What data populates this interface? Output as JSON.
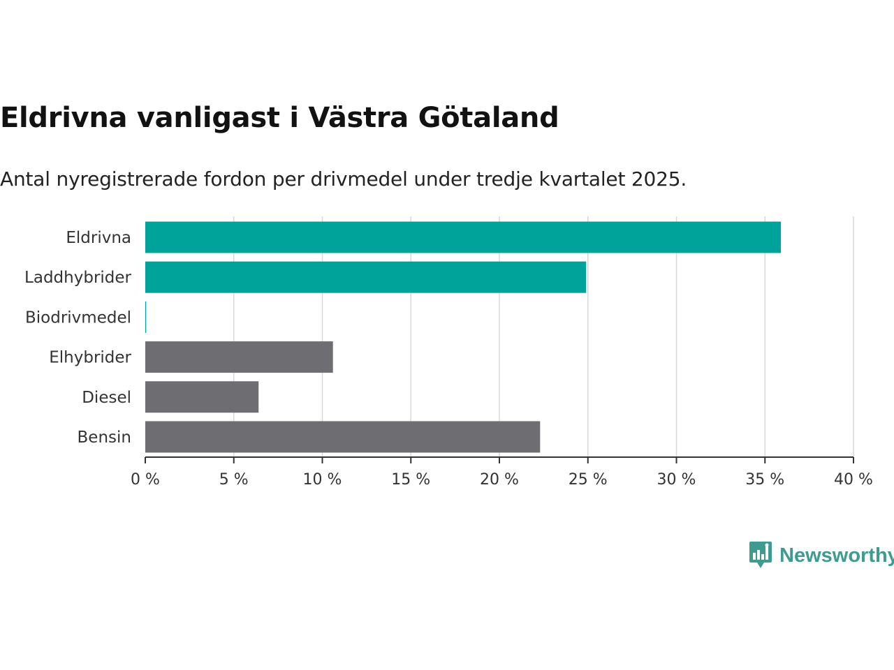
{
  "title": "Eldrivna vanligast i Västra Götaland",
  "subtitle": "Antal nyregistrerade fordon per drivmedel under tredje kvartalet 2025.",
  "brand": {
    "name": "Newsworthy",
    "icon": "newsworthy-logo-icon",
    "color": "#3d9b90"
  },
  "colors": {
    "highlight": "#00a39a",
    "other": "#6e6d72",
    "grid": "#d9d9d9",
    "axis": "#333333"
  },
  "chart_data": {
    "type": "bar",
    "orientation": "horizontal",
    "title": "Eldrivna vanligast i Västra Götaland",
    "subtitle": "Antal nyregistrerade fordon per drivmedel under tredje kvartalet 2025.",
    "categories": [
      "Eldrivna",
      "Laddhybrider",
      "Biodrivmedel",
      "Elhybrider",
      "Diesel",
      "Bensin"
    ],
    "values": [
      35.9,
      24.9,
      0.05,
      10.6,
      6.4,
      22.3
    ],
    "highlighted": [
      true,
      true,
      true,
      false,
      false,
      false
    ],
    "xlabel": "",
    "ylabel": "",
    "xlim": [
      0,
      40
    ],
    "ticks": [
      0,
      5,
      10,
      15,
      20,
      25,
      30,
      35,
      40
    ],
    "tick_labels": [
      "0 %",
      "5 %",
      "10 %",
      "15 %",
      "20 %",
      "25 %",
      "30 %",
      "35 %",
      "40 %"
    ],
    "unit": "%",
    "grid": true,
    "legend": "none"
  }
}
